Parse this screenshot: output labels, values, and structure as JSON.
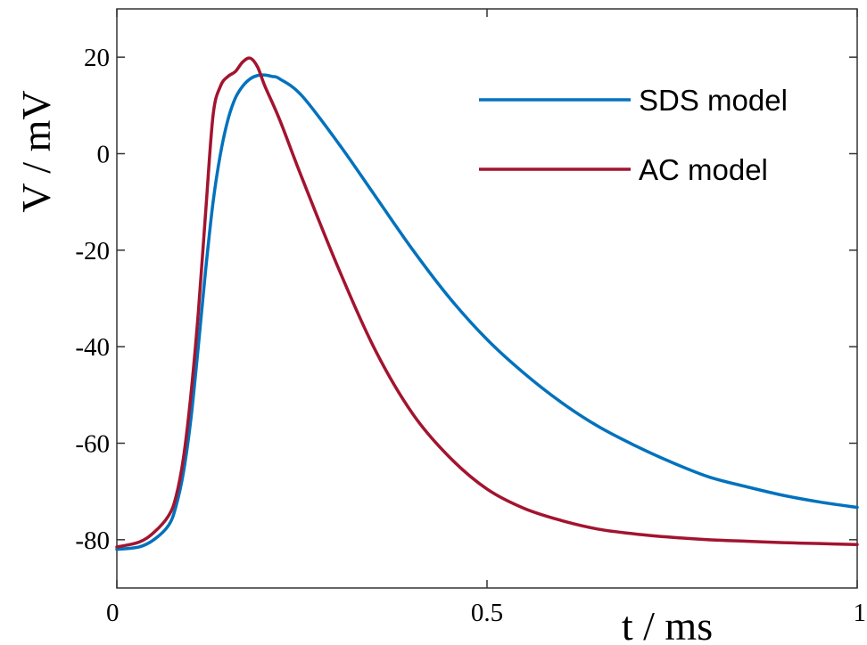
{
  "chart_data": {
    "type": "line",
    "xlabel": "t / ms",
    "ylabel": "V / mV",
    "xlim": [
      0,
      1
    ],
    "ylim": [
      -90,
      30
    ],
    "x_ticks": [
      0,
      0.5,
      1
    ],
    "x_tick_labels": [
      "0",
      "0.5",
      "1"
    ],
    "y_ticks": [
      -80,
      -60,
      -40,
      -20,
      0,
      20
    ],
    "y_tick_labels": [
      "-80",
      "-60",
      "-40",
      "-20",
      "0",
      "20"
    ],
    "grid": false,
    "legend_position": "top-right",
    "series": [
      {
        "name": "SDS model",
        "color": "#0072BD",
        "x": [
          0,
          0.03,
          0.05,
          0.07,
          0.08,
          0.09,
          0.1,
          0.11,
          0.12,
          0.13,
          0.14,
          0.15,
          0.16,
          0.17,
          0.18,
          0.19,
          0.2,
          0.21,
          0.22,
          0.25,
          0.3,
          0.35,
          0.4,
          0.45,
          0.5,
          0.55,
          0.6,
          0.65,
          0.7,
          0.75,
          0.8,
          0.85,
          0.9,
          0.95,
          1.0
        ],
        "y": [
          -82,
          -81.5,
          -80,
          -77,
          -73,
          -66,
          -55,
          -40,
          -24,
          -10,
          0,
          7,
          11.5,
          14,
          15.5,
          16.2,
          16.3,
          16,
          15.5,
          12,
          2,
          -9,
          -20,
          -30,
          -38.5,
          -45.5,
          -51.5,
          -56.5,
          -60.5,
          -64,
          -67,
          -69,
          -70.8,
          -72.2,
          -73.3
        ]
      },
      {
        "name": "AC model",
        "color": "#A2142F",
        "x": [
          0,
          0.03,
          0.05,
          0.07,
          0.08,
          0.09,
          0.1,
          0.11,
          0.12,
          0.13,
          0.14,
          0.15,
          0.16,
          0.17,
          0.18,
          0.19,
          0.2,
          0.22,
          0.25,
          0.3,
          0.35,
          0.4,
          0.45,
          0.5,
          0.55,
          0.6,
          0.65,
          0.7,
          0.75,
          0.8,
          0.85,
          0.9,
          0.95,
          1.0
        ],
        "y": [
          -81.5,
          -80.5,
          -78.5,
          -75,
          -71,
          -63,
          -50,
          -33,
          -12,
          8,
          14,
          16,
          17,
          19,
          19.8,
          18,
          14,
          7,
          -5,
          -24,
          -41,
          -54,
          -63,
          -69.5,
          -73.5,
          -76,
          -77.8,
          -78.8,
          -79.5,
          -80,
          -80.3,
          -80.6,
          -80.8,
          -81
        ]
      }
    ]
  }
}
